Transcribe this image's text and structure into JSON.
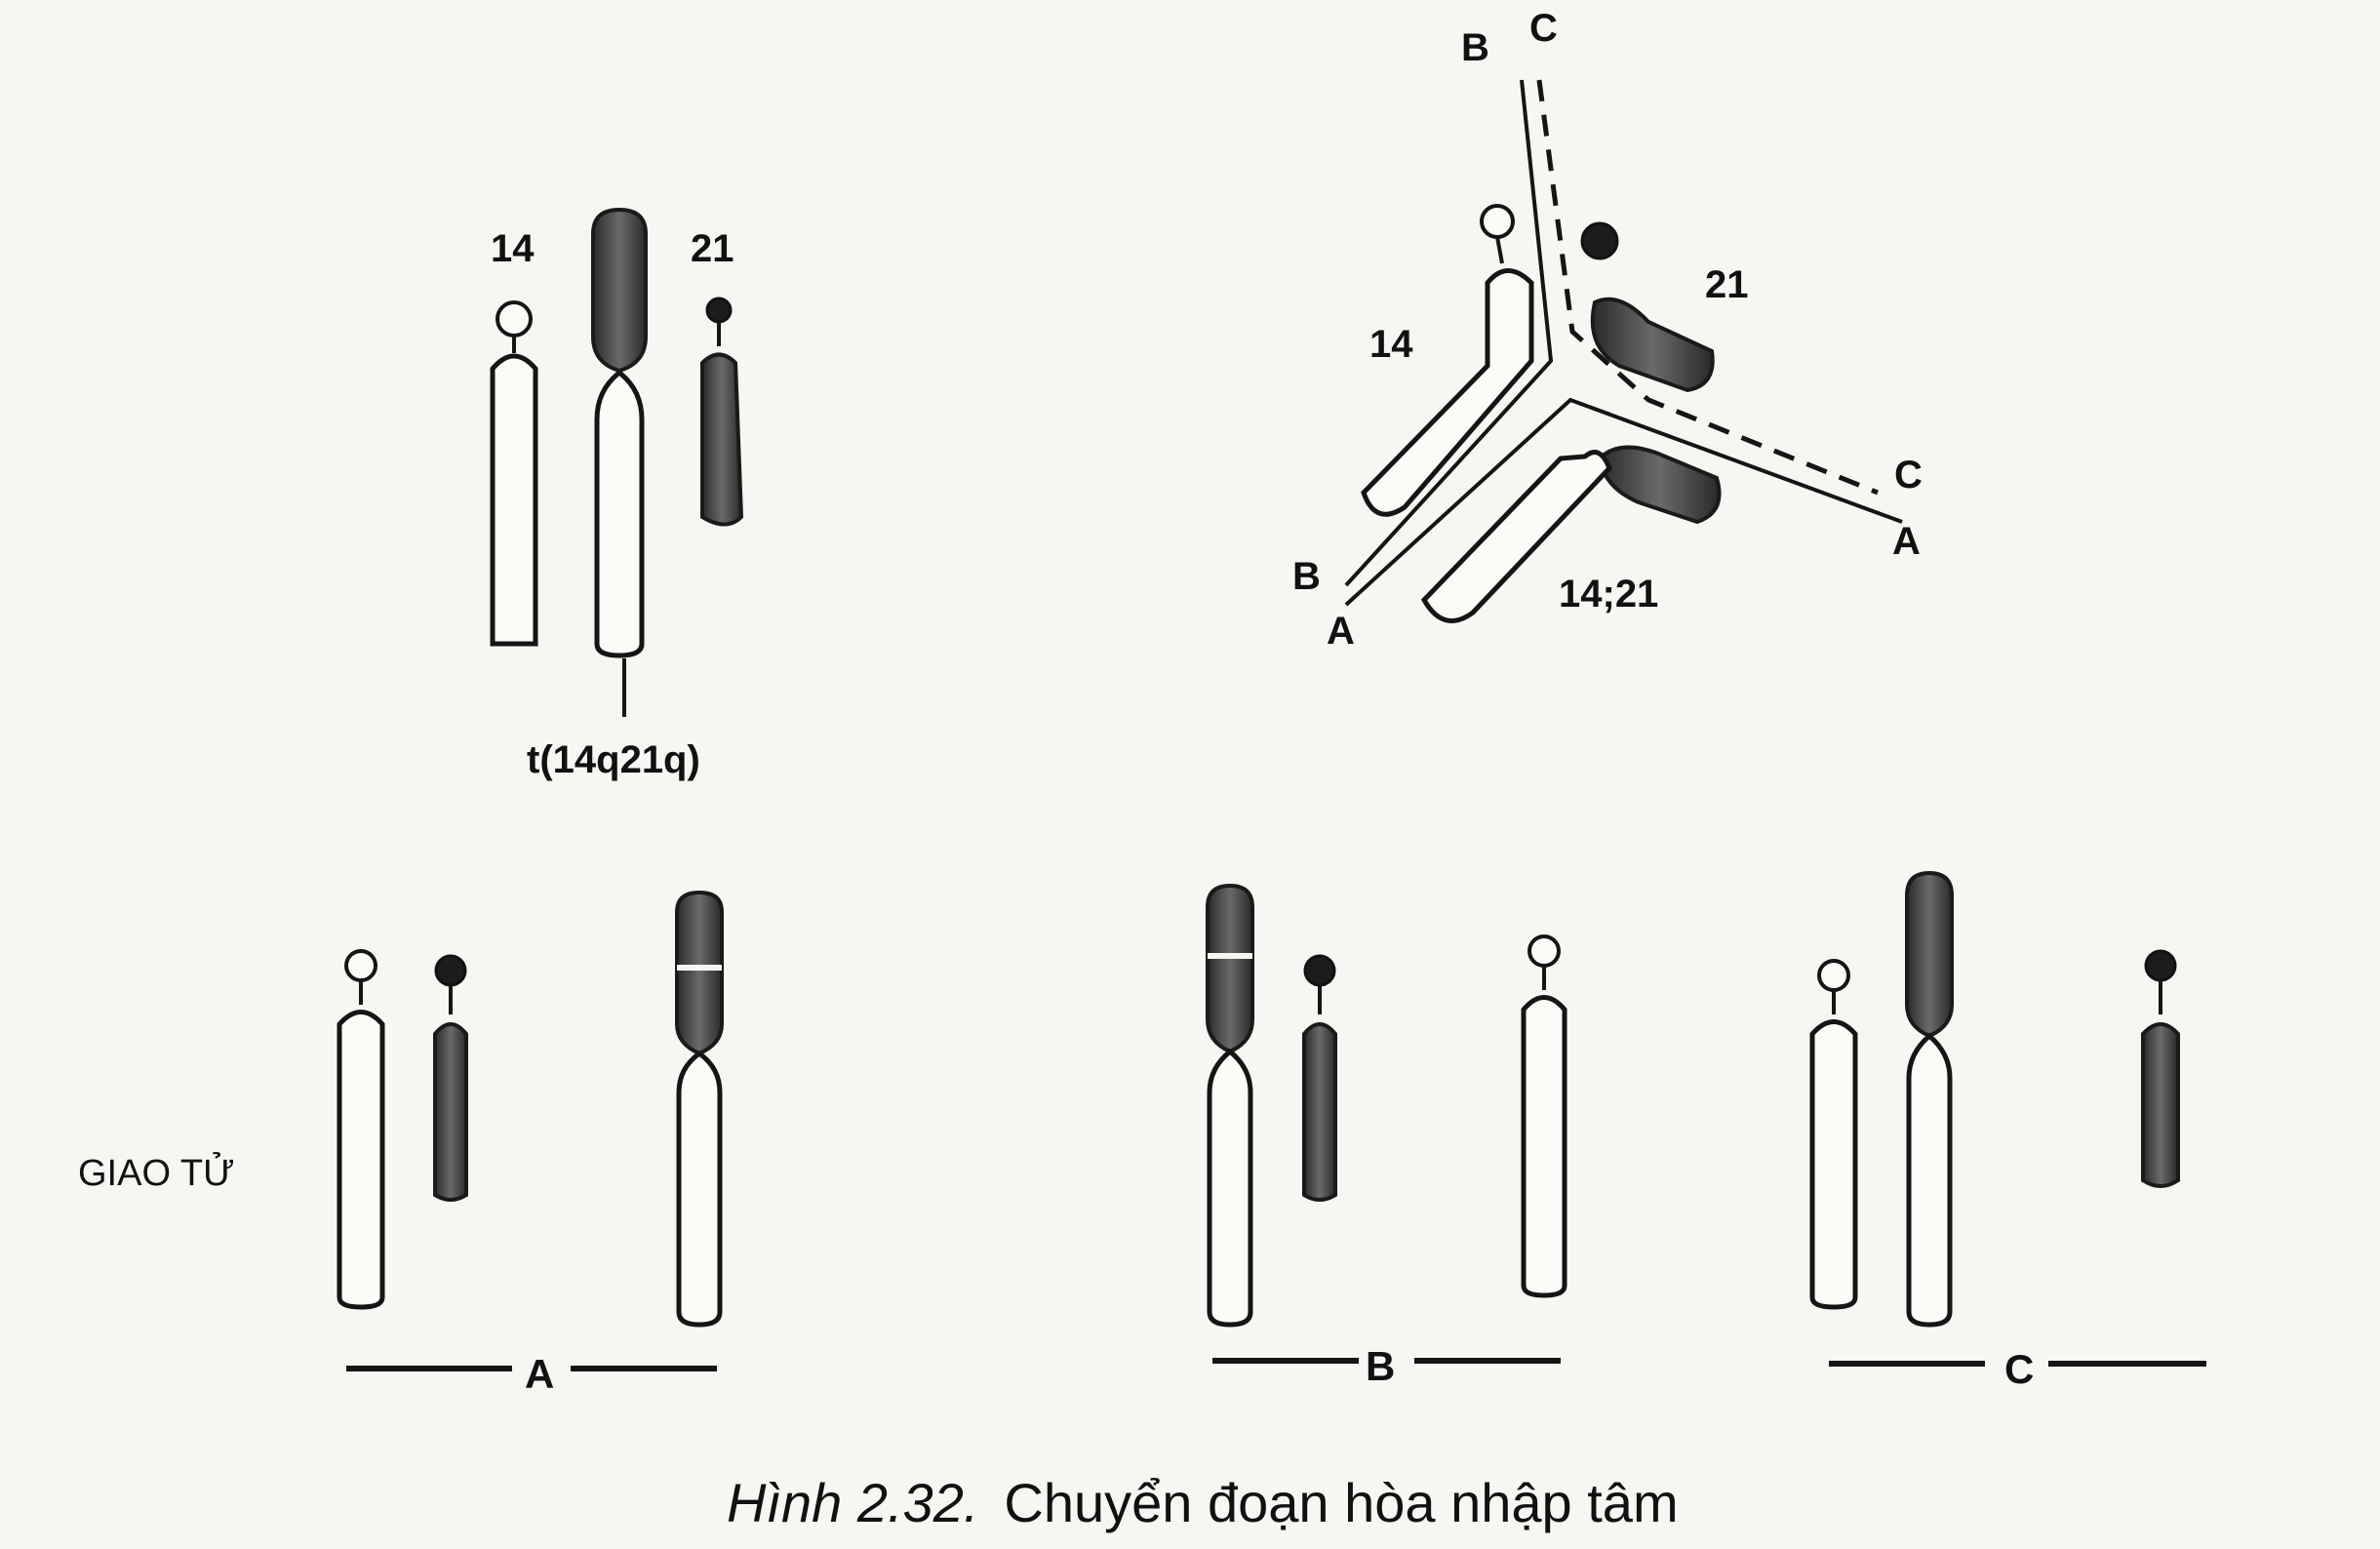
{
  "diagram": {
    "top_left": {
      "label_14": "14",
      "label_21": "21",
      "label_translocation": "t(14q21q)"
    },
    "top_right": {
      "label_14": "14",
      "label_21": "21",
      "label_14_21": "14;21",
      "end_labels": {
        "top_b": "B",
        "top_c": "C",
        "right_c": "C",
        "right_a": "A",
        "left_b": "B",
        "left_a": "A"
      }
    },
    "gametes": {
      "row_label": "GIAO TỬ",
      "group_a": "A",
      "group_b": "B",
      "group_c": "C"
    },
    "caption": {
      "number": "Hình 2.32.",
      "text": "Chuyển đoạn hòa nhập tâm"
    }
  }
}
